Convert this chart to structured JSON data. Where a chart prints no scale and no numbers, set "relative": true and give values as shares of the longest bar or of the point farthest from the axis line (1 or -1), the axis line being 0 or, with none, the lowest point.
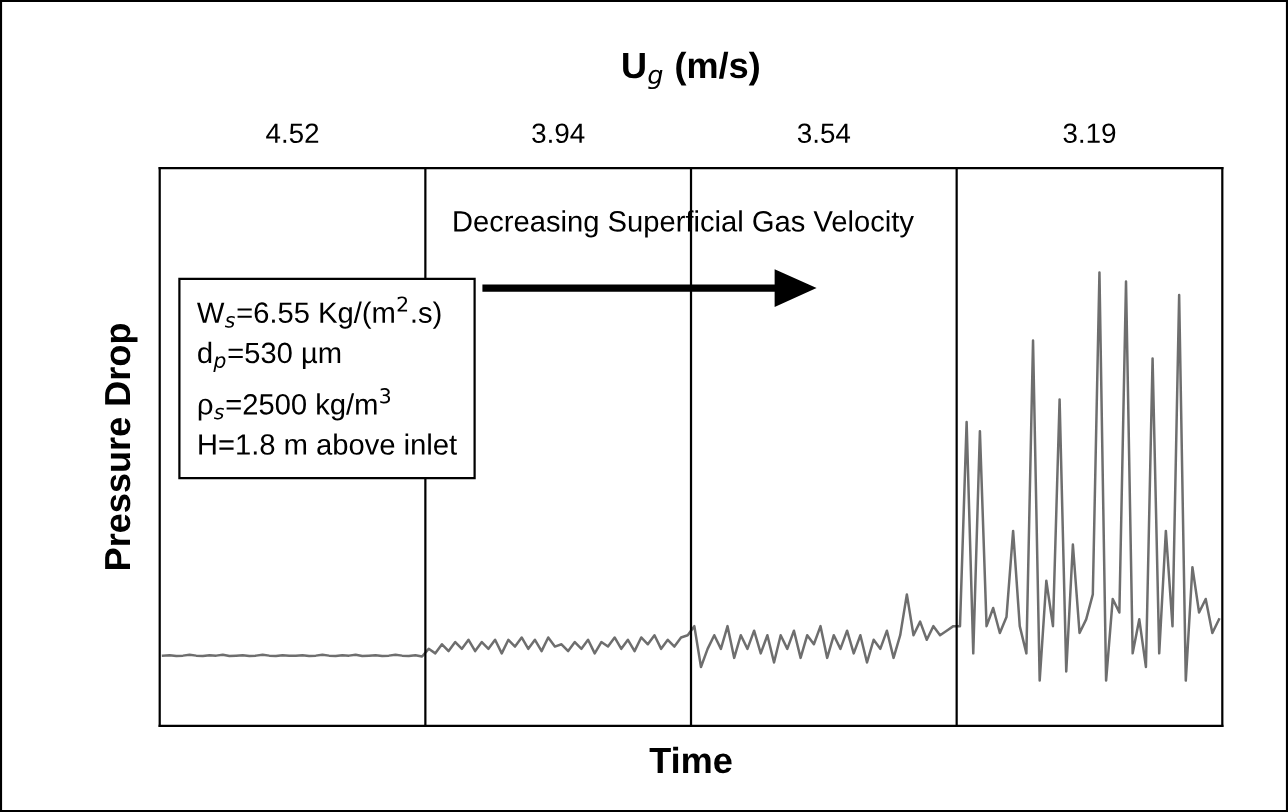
{
  "chart_data": {
    "type": "line",
    "relative": true,
    "xlabel": "Time",
    "ylabel": "Pressure Drop",
    "x2label": "U$_{g}$ (m/s)",
    "categories": [
      null,
      null,
      null,
      null,
      null,
      null,
      null,
      null,
      null,
      null,
      null,
      null,
      null,
      null,
      null,
      null,
      null,
      null,
      null,
      null,
      null,
      null,
      null,
      null,
      null,
      null,
      null,
      null,
      null,
      null,
      null,
      null,
      null,
      null,
      null,
      null,
      null,
      null,
      null,
      null,
      null,
      null,
      null,
      null,
      null,
      null,
      null,
      null,
      null,
      null,
      null,
      null,
      null,
      null,
      null,
      null,
      null,
      null,
      null,
      null,
      null,
      null,
      null,
      null,
      null,
      null,
      null,
      null,
      null,
      null,
      null,
      null,
      null,
      null,
      null,
      null,
      null,
      null,
      null,
      null,
      null,
      null,
      null,
      null,
      null,
      null,
      null,
      null,
      null,
      null,
      null,
      null,
      null,
      null,
      null,
      null,
      null,
      null,
      null,
      null,
      null,
      null,
      null,
      null,
      null,
      null,
      null,
      null,
      null,
      null,
      null,
      null,
      null,
      null,
      null,
      null,
      null,
      null,
      null,
      null,
      null,
      null,
      null,
      null,
      null,
      null,
      null,
      null,
      null,
      null,
      null,
      null,
      null,
      null,
      null,
      null,
      null,
      null,
      null,
      null,
      null,
      null,
      null,
      null,
      null,
      null,
      null,
      null,
      null,
      null,
      null,
      null,
      null,
      null,
      null,
      null,
      null,
      null,
      null,
      null
    ],
    "ref_lines": [
      {
        "axis": "x",
        "value": null,
        "color": "#000000"
      },
      {
        "axis": "x",
        "value": null,
        "color": "#000000"
      },
      {
        "axis": "x",
        "value": null,
        "color": "#000000"
      }
    ],
    "annotations": [
      "Decreasing Superficial Gas Velocity",
      "W$_{s}$=6.55 Kg/(m$^{2}$.s)\nd$_{p}$=530 µm\nρ$_{s}$=2500 kg/m$^{3}$\nH=1.8 m above inlet",
      "4.52",
      "3.94",
      "3.54",
      "3.19"
    ],
    "series": [
      {
        "color": "#6e6e6e",
        "values": [
          0.155,
          0.156,
          0.154,
          0.155,
          0.157,
          0.155,
          0.154,
          0.156,
          0.155,
          0.157,
          0.154,
          0.155,
          0.156,
          0.154,
          0.155,
          0.157,
          0.155,
          0.154,
          0.156,
          0.155,
          0.155,
          0.156,
          0.154,
          0.155,
          0.157,
          0.155,
          0.154,
          0.156,
          0.155,
          0.157,
          0.154,
          0.155,
          0.156,
          0.154,
          0.155,
          0.157,
          0.155,
          0.154,
          0.156,
          0.153,
          0.17,
          0.16,
          0.18,
          0.165,
          0.185,
          0.17,
          0.19,
          0.165,
          0.185,
          0.17,
          0.19,
          0.16,
          0.19,
          0.175,
          0.195,
          0.17,
          0.19,
          0.165,
          0.195,
          0.175,
          0.18,
          0.165,
          0.185,
          0.17,
          0.19,
          0.16,
          0.185,
          0.175,
          0.195,
          0.17,
          0.19,
          0.165,
          0.195,
          0.18,
          0.2,
          0.17,
          0.19,
          0.175,
          0.195,
          0.2,
          0.22,
          0.13,
          0.17,
          0.2,
          0.17,
          0.22,
          0.15,
          0.2,
          0.17,
          0.21,
          0.16,
          0.2,
          0.14,
          0.2,
          0.17,
          0.21,
          0.15,
          0.2,
          0.18,
          0.22,
          0.15,
          0.2,
          0.17,
          0.21,
          0.16,
          0.2,
          0.14,
          0.19,
          0.17,
          0.21,
          0.15,
          0.2,
          0.29,
          0.2,
          0.23,
          0.19,
          0.22,
          0.2,
          0.21,
          0.22,
          0.22,
          0.67,
          0.16,
          0.65,
          0.22,
          0.26,
          0.205,
          0.24,
          0.43,
          0.22,
          0.16,
          0.85,
          0.1,
          0.32,
          0.22,
          0.72,
          0.12,
          0.4,
          0.205,
          0.235,
          0.29,
          1.0,
          0.1,
          0.28,
          0.25,
          0.98,
          0.16,
          0.235,
          0.13,
          0.81,
          0.16,
          0.43,
          0.22,
          0.95,
          0.1,
          0.35,
          0.25,
          0.28,
          0.205,
          0.235
        ]
      }
    ]
  }
}
